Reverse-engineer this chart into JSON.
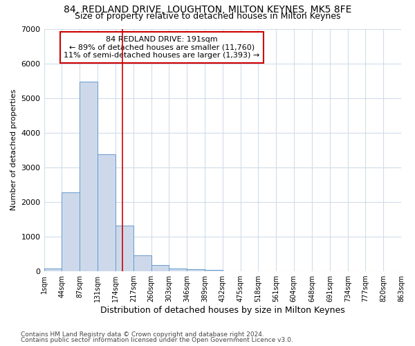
{
  "title": "84, REDLAND DRIVE, LOUGHTON, MILTON KEYNES, MK5 8FE",
  "subtitle": "Size of property relative to detached houses in Milton Keynes",
  "xlabel": "Distribution of detached houses by size in Milton Keynes",
  "ylabel": "Number of detached properties",
  "footer_line1": "Contains HM Land Registry data © Crown copyright and database right 2024.",
  "footer_line2": "Contains public sector information licensed under the Open Government Licence v3.0.",
  "annotation_line1": "84 REDLAND DRIVE: 191sqm",
  "annotation_line2": "← 89% of detached houses are smaller (11,760)",
  "annotation_line3": "11% of semi-detached houses are larger (1,393) →",
  "bar_values": [
    75,
    2270,
    5480,
    3380,
    1310,
    460,
    185,
    90,
    55,
    40,
    0,
    0,
    0,
    0,
    0,
    0,
    0,
    0,
    0,
    0
  ],
  "bin_edges": [
    1,
    44,
    87,
    131,
    174,
    217,
    260,
    303,
    346,
    389,
    432,
    475,
    518,
    561,
    604,
    648,
    691,
    734,
    777,
    820,
    863
  ],
  "tick_labels": [
    "1sqm",
    "44sqm",
    "87sqm",
    "131sqm",
    "174sqm",
    "217sqm",
    "260sqm",
    "303sqm",
    "346sqm",
    "389sqm",
    "432sqm",
    "475sqm",
    "518sqm",
    "561sqm",
    "604sqm",
    "648sqm",
    "691sqm",
    "734sqm",
    "777sqm",
    "820sqm",
    "863sqm"
  ],
  "property_size": 191,
  "bar_color": "#cdd9ea",
  "bar_edge_color": "#6699cc",
  "vline_color": "#cc0000",
  "background_color": "#ffffff",
  "axes_background": "#ffffff",
  "grid_color": "#d0dce8",
  "ylim": [
    0,
    7000
  ],
  "yticks": [
    0,
    1000,
    2000,
    3000,
    4000,
    5000,
    6000,
    7000
  ],
  "title_fontsize": 10,
  "subtitle_fontsize": 9,
  "annotation_box_color": "#ffffff",
  "annotation_box_edge": "#cc0000"
}
